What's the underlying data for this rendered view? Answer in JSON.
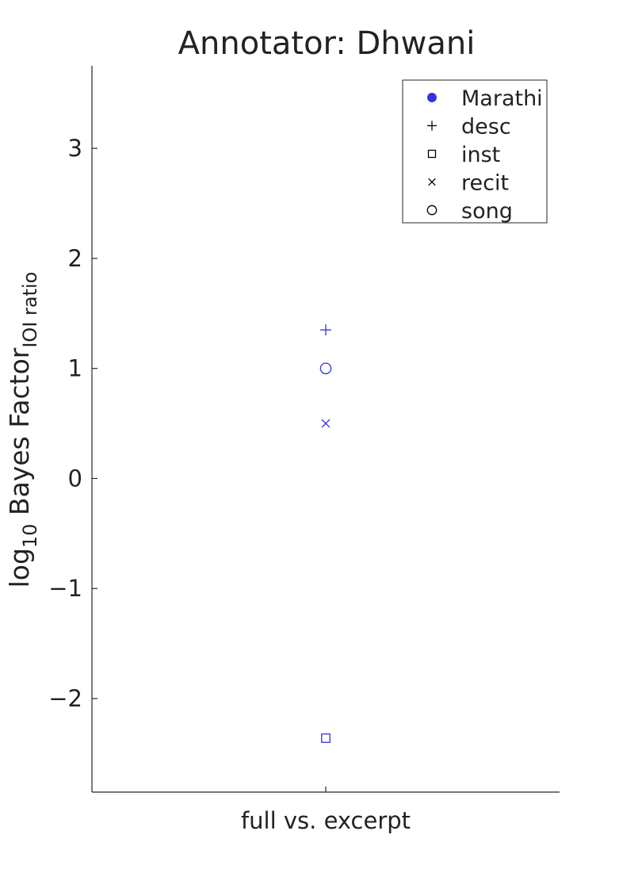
{
  "chart_data": {
    "type": "scatter",
    "title": "Annotator: Dhwani",
    "ylabel": {
      "prefix": "log",
      "prefix_sub": "10",
      "main": " Bayes Factor",
      "main_sub": "IOI ratio"
    },
    "categories": [
      "full vs. excerpt"
    ],
    "ylim": [
      -2.85,
      3.75
    ],
    "yticks": [
      -2,
      -1,
      0,
      1,
      2,
      3
    ],
    "ytick_labels": [
      "−2",
      "−1",
      "0",
      "1",
      "2",
      "3"
    ],
    "legend_position": "top-right",
    "legend": [
      {
        "label": "Marathi",
        "marker": "dot",
        "color": "#3333dd"
      },
      {
        "label": "desc",
        "marker": "plus",
        "color": "#000000"
      },
      {
        "label": "inst",
        "marker": "square",
        "color": "#000000"
      },
      {
        "label": "recit",
        "marker": "x",
        "color": "#000000"
      },
      {
        "label": "song",
        "marker": "circle",
        "color": "#000000"
      }
    ],
    "points": [
      {
        "category": "full vs. excerpt",
        "series": "Marathi",
        "type": "desc",
        "y": 1.35,
        "marker": "plus",
        "color": "#3333dd"
      },
      {
        "category": "full vs. excerpt",
        "series": "Marathi",
        "type": "song",
        "y": 1.0,
        "marker": "circle",
        "color": "#3333dd"
      },
      {
        "category": "full vs. excerpt",
        "series": "Marathi",
        "type": "recit",
        "y": 0.5,
        "marker": "x",
        "color": "#3333dd"
      },
      {
        "category": "full vs. excerpt",
        "series": "Marathi",
        "type": "inst",
        "y": -2.36,
        "marker": "square",
        "color": "#3333dd"
      }
    ],
    "grid": false
  }
}
